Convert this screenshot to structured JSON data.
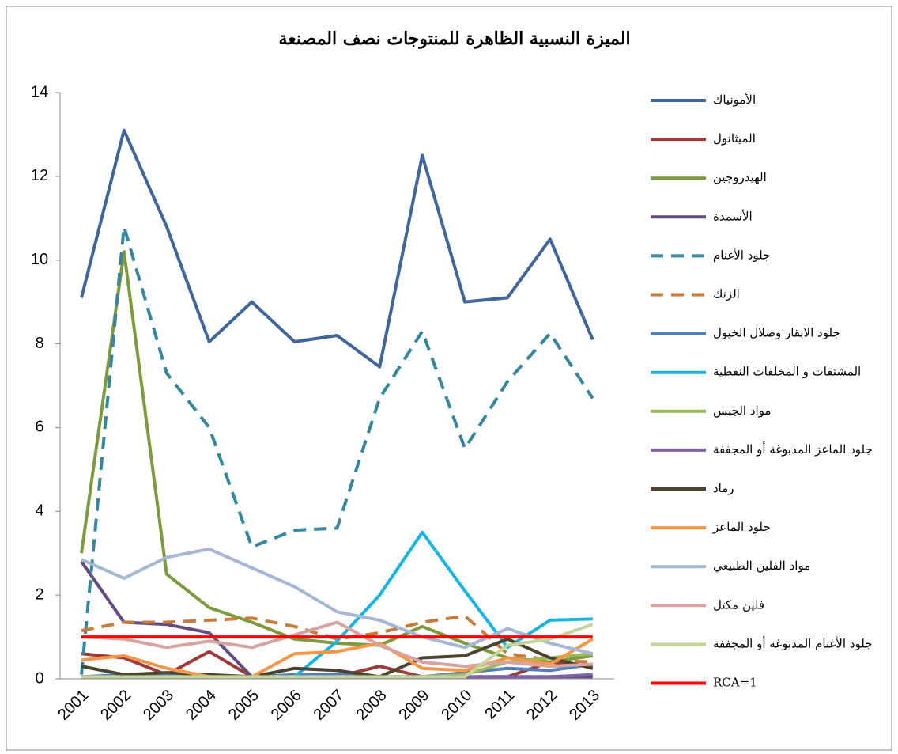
{
  "chart_data": {
    "type": "line",
    "title": "الميزة النسبية الظاهرة للمنتوجات نصف المصنعة",
    "categories": [
      "2001",
      "2002",
      "2003",
      "2004",
      "2005",
      "2006",
      "2007",
      "2008",
      "2009",
      "2010",
      "2011",
      "2012",
      "2013"
    ],
    "ylim": [
      0,
      14
    ],
    "yticks": [
      0,
      2,
      4,
      6,
      8,
      10,
      12,
      14
    ],
    "grid": false,
    "legend": "right",
    "series": [
      {
        "name": "الأمونياك",
        "color": "#41669d",
        "dash": false,
        "values": [
          9.1,
          13.1,
          10.8,
          8.05,
          9.0,
          8.05,
          8.2,
          7.45,
          12.5,
          9.0,
          9.1,
          10.5,
          8.1
        ]
      },
      {
        "name": "الميثانول",
        "color": "#9e3b38",
        "dash": false,
        "values": [
          0.6,
          0.5,
          0.1,
          0.65,
          0.05,
          0.05,
          0.05,
          0.3,
          0.05,
          0.05,
          0.05,
          0.4,
          0.3
        ]
      },
      {
        "name": "الهيدروجين",
        "color": "#7e9a3f",
        "dash": false,
        "values": [
          3.0,
          10.2,
          2.5,
          1.7,
          1.35,
          0.95,
          0.85,
          0.8,
          1.25,
          0.85,
          0.5,
          0.4,
          0.55
        ]
      },
      {
        "name": "الأسمدة",
        "color": "#614b82",
        "dash": false,
        "values": [
          2.8,
          1.35,
          1.3,
          1.1,
          0.05,
          0.05,
          0.05,
          0.05,
          0.05,
          0.05,
          0.05,
          0.05,
          0.05
        ]
      },
      {
        "name": "جلود الأغنام",
        "color": "#35869e",
        "dash": true,
        "values": [
          0.1,
          10.8,
          7.3,
          6.0,
          3.15,
          3.55,
          3.6,
          6.7,
          8.3,
          5.5,
          7.1,
          8.25,
          6.7
        ]
      },
      {
        "name": "الزنك",
        "color": "#c87c3c",
        "dash": true,
        "values": [
          1.15,
          1.35,
          1.35,
          1.4,
          1.45,
          1.25,
          0.95,
          1.1,
          1.35,
          1.5,
          0.6,
          0.45,
          0.4
        ]
      },
      {
        "name": "جلود الابقار وصلال الخيول",
        "color": "#4f7fbe",
        "dash": false,
        "values": [
          0.05,
          0.1,
          0.1,
          0.05,
          0.05,
          0.1,
          0.1,
          0.05,
          0.05,
          0.15,
          0.25,
          0.2,
          0.35
        ]
      },
      {
        "name": "المشتقات و المخلفات النفطية",
        "color": "#19b4e6",
        "dash": false,
        "values": [
          0.05,
          0.05,
          0.05,
          0.05,
          0.05,
          0.05,
          0.9,
          2.0,
          3.5,
          2.1,
          0.75,
          1.4,
          1.43
        ]
      },
      {
        "name": "مواد الجبس",
        "color": "#9bbb59",
        "dash": false,
        "values": [
          0.05,
          0.05,
          0.05,
          0.05,
          0.05,
          0.05,
          0.05,
          0.05,
          0.05,
          0.1,
          0.4,
          0.5,
          0.6
        ]
      },
      {
        "name": "جلود الماعز المدبوغة أو المجففة",
        "color": "#7f62a8",
        "dash": false,
        "values": [
          0.05,
          0.05,
          0.05,
          0.05,
          0.05,
          0.05,
          0.05,
          0.05,
          0.05,
          0.05,
          0.05,
          0.05,
          0.1
        ]
      },
      {
        "name": "رماد",
        "color": "#4a4430",
        "dash": false,
        "values": [
          0.3,
          0.1,
          0.15,
          0.1,
          0.05,
          0.25,
          0.2,
          0.05,
          0.5,
          0.55,
          0.95,
          0.5,
          0.25
        ]
      },
      {
        "name": "جلود الماعز",
        "color": "#f79646",
        "dash": false,
        "values": [
          0.45,
          0.55,
          0.25,
          0.05,
          0.05,
          0.6,
          0.65,
          0.85,
          0.25,
          0.2,
          0.5,
          0.35,
          0.95
        ]
      },
      {
        "name": "مواد الفلين الطبيعي",
        "color": "#a6b6d6",
        "dash": false,
        "values": [
          2.85,
          2.4,
          2.9,
          3.1,
          2.65,
          2.2,
          1.6,
          1.4,
          1.0,
          0.75,
          1.2,
          0.85,
          0.6
        ]
      },
      {
        "name": "فلين مكتل",
        "color": "#d7a3a1",
        "dash": false,
        "values": [
          1.0,
          0.95,
          0.75,
          0.9,
          0.75,
          1.05,
          1.35,
          0.8,
          0.4,
          0.3,
          0.4,
          0.3,
          0.35
        ]
      },
      {
        "name": "جلود الأغنام المدبوغة أو المجففة",
        "color": "#c3d69b",
        "dash": false,
        "values": [
          0.05,
          0.05,
          0.05,
          0.05,
          0.05,
          0.05,
          0.05,
          0.05,
          0.05,
          0.05,
          0.8,
          0.95,
          1.3
        ]
      },
      {
        "name": "RCA=1",
        "color": "#ff0000",
        "dash": false,
        "values": [
          1,
          1,
          1,
          1,
          1,
          1,
          1,
          1,
          1,
          1,
          1,
          1,
          1
        ]
      }
    ]
  }
}
